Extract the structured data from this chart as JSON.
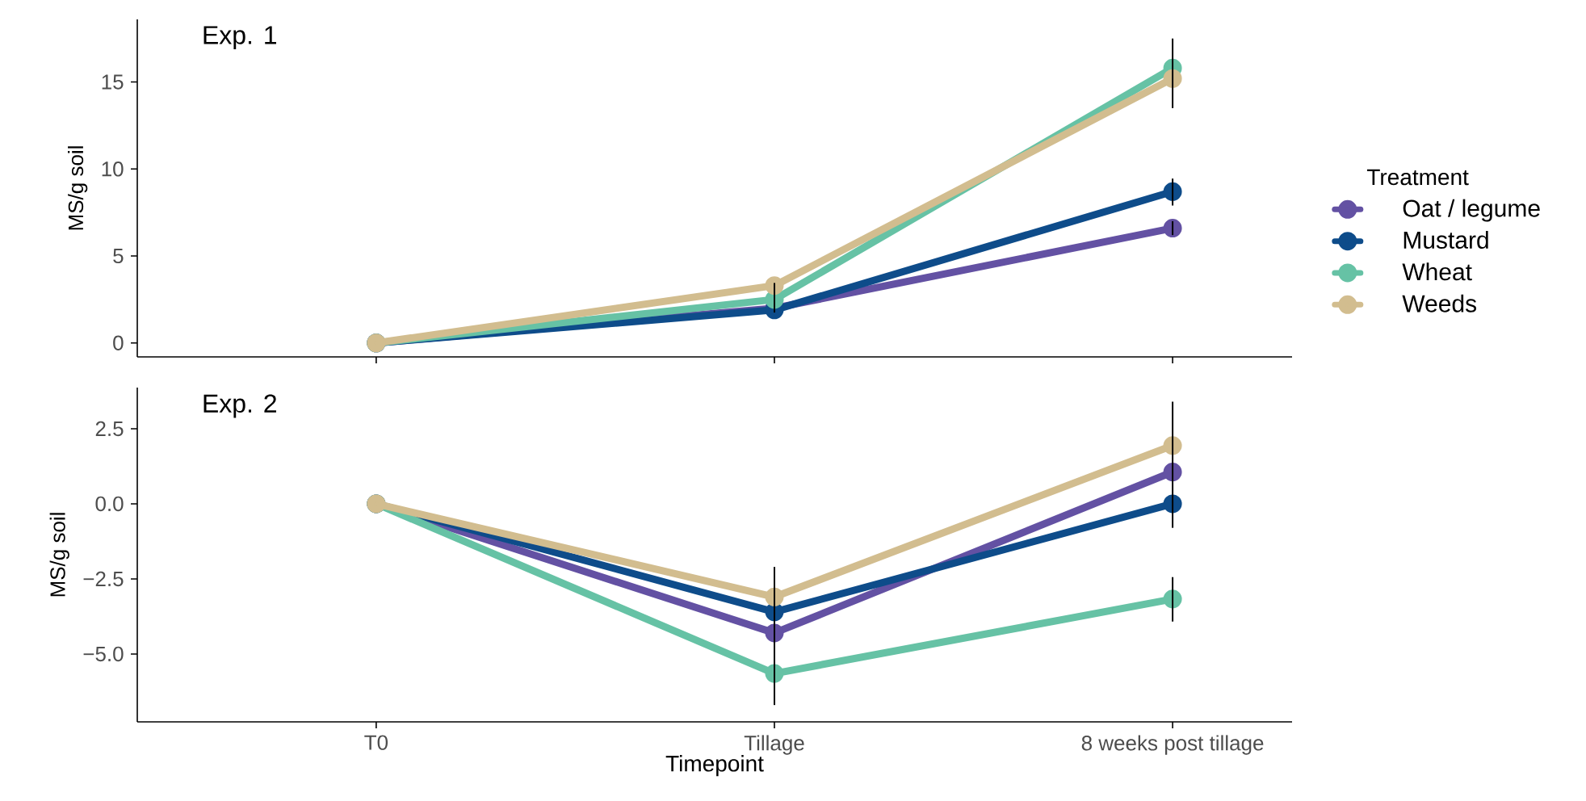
{
  "chart_data": [
    {
      "type": "line",
      "title": "Exp. 1",
      "ylabel": "MS/g soil",
      "legend_title": "Treatment",
      "legend": "right",
      "marker": "circle",
      "tick_labels": "y",
      "categories": [
        null,
        null,
        null
      ],
      "ylim": [
        -0.8,
        18.6
      ],
      "yticks": [
        0,
        5,
        10,
        15
      ],
      "series": [
        {
          "name": "Oat / legume",
          "color": "#6351a3",
          "values": [
            0,
            2.0,
            6.6
          ],
          "errors": [
            null,
            null,
            [
              6.2,
              7.0
            ]
          ]
        },
        {
          "name": "Mustard",
          "color": "#0e4c8a",
          "values": [
            0,
            1.9,
            8.7
          ],
          "errors": [
            null,
            null,
            [
              7.9,
              9.45
            ]
          ]
        },
        {
          "name": "Wheat",
          "color": "#66c2a5",
          "values": [
            0,
            2.5,
            15.8
          ],
          "errors": [
            null,
            [
              1.75,
              3.45
            ],
            [
              13.5,
              17.5
            ]
          ]
        },
        {
          "name": "Weeds",
          "color": "#d2bd8f",
          "values": [
            0,
            3.3,
            15.2
          ],
          "errors": [
            null,
            null,
            null
          ]
        }
      ]
    },
    {
      "type": "line",
      "title": "Exp. 2",
      "ylabel": "MS/g soil",
      "xlabel": "Timepoint",
      "marker": "circle",
      "categories": [
        "T0",
        "Tillage",
        "8 weeks post tillage"
      ],
      "ylim": [
        -7.26,
        3.87
      ],
      "yticks": [
        {
          "value": -5,
          "label": "−5.0"
        },
        {
          "value": -2.5,
          "label": "−2.5"
        },
        {
          "value": 0,
          "label": "0.0"
        },
        {
          "value": 2.5,
          "label": "2.5"
        }
      ],
      "series": [
        {
          "color": "#6351a3",
          "values": [
            0,
            -4.3,
            1.06
          ],
          "errors": [
            null,
            [
              -6.7,
              -2.1
            ],
            [
              -0.8,
              3.4
            ]
          ]
        },
        {
          "color": "#0e4c8a",
          "values": [
            0,
            -3.6,
            0.0
          ],
          "errors": [
            null,
            null,
            null
          ]
        },
        {
          "color": "#66c2a5",
          "values": [
            0,
            -5.65,
            -3.17
          ],
          "errors": [
            null,
            null,
            [
              -3.92,
              -2.44
            ]
          ]
        },
        {
          "color": "#d2bd8f",
          "values": [
            0,
            -3.1,
            1.94
          ],
          "errors": [
            null,
            null,
            null
          ]
        }
      ]
    }
  ]
}
